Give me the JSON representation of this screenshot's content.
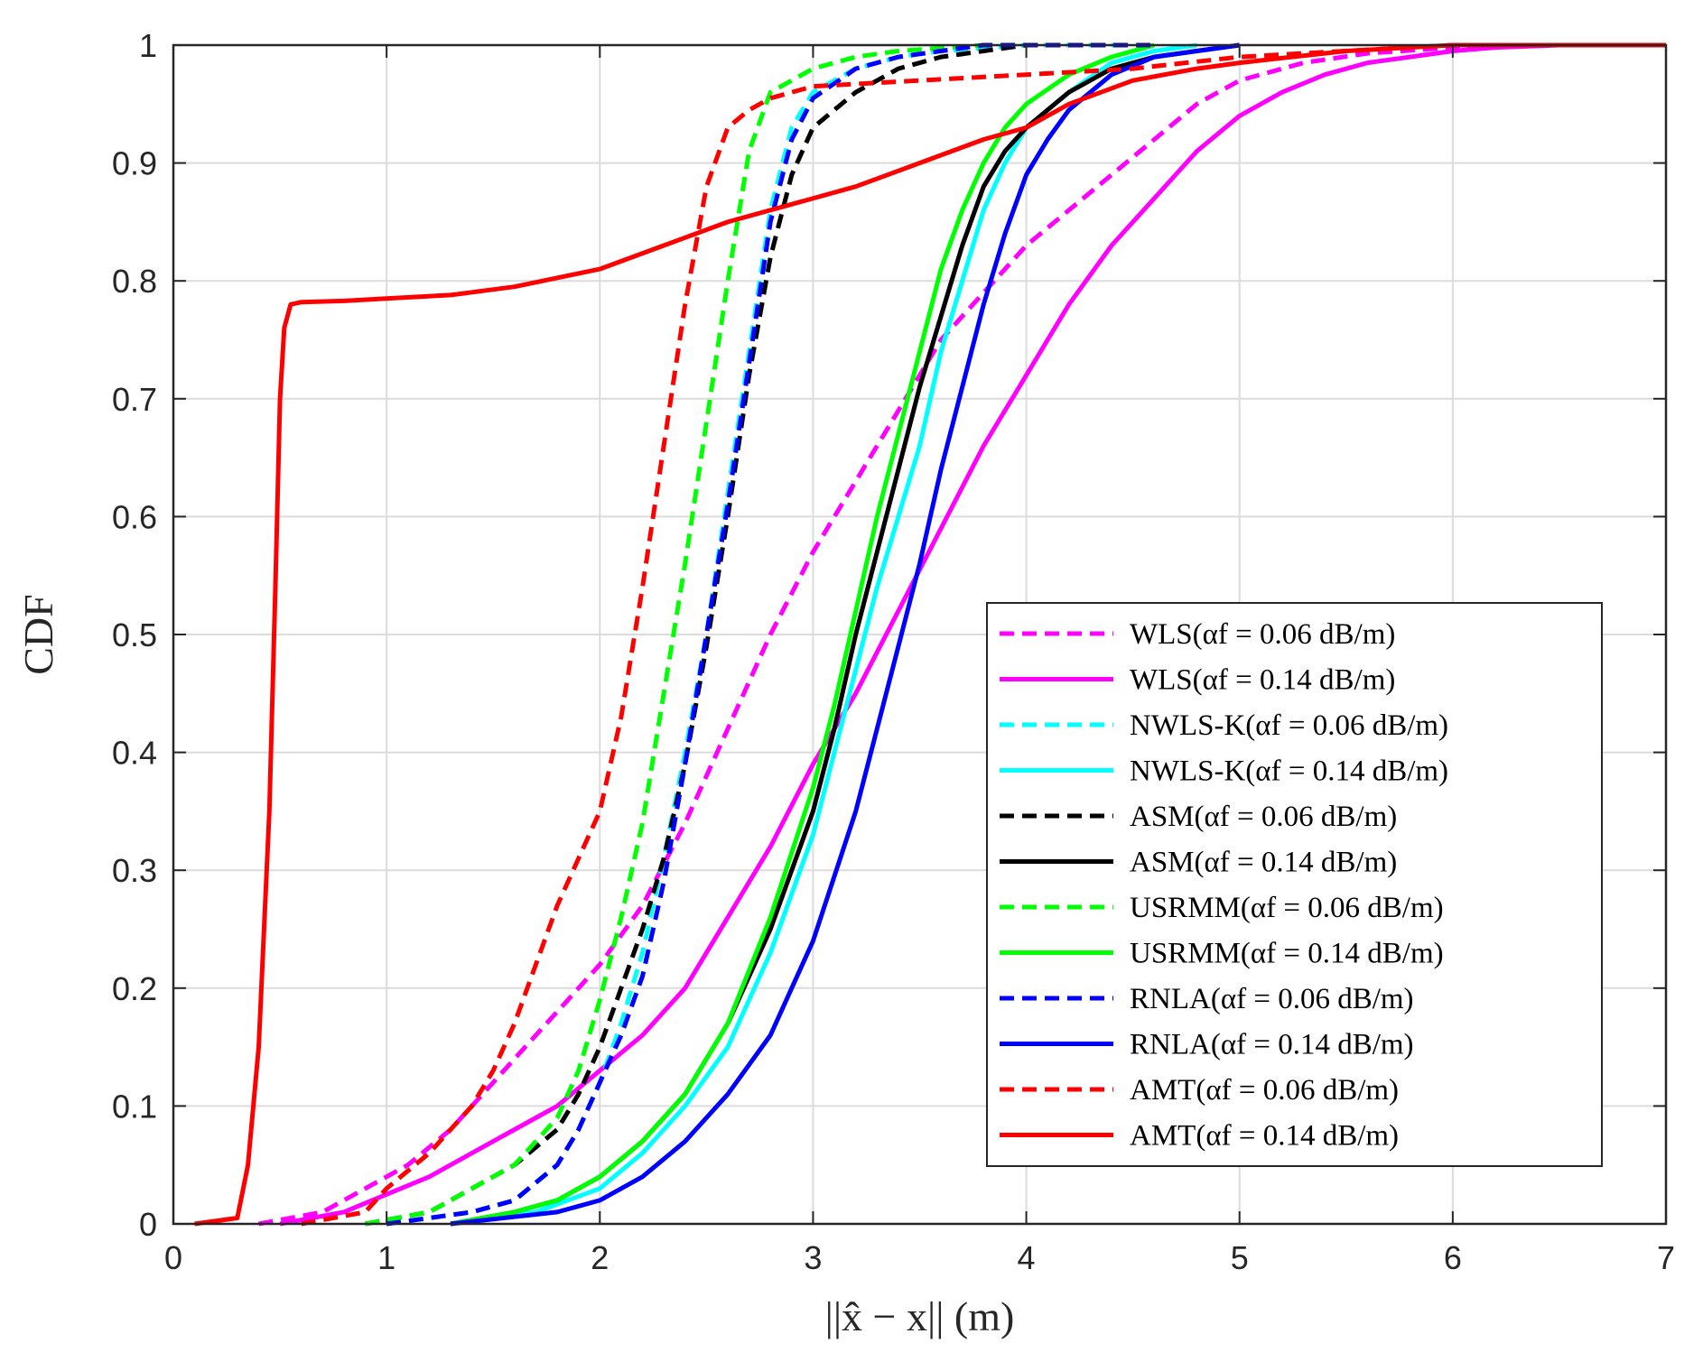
{
  "chart_data": {
    "type": "line",
    "title": "",
    "xlabel": "||x̂ − x|| (m)",
    "ylabel": "CDF",
    "xlim": [
      0,
      7
    ],
    "ylim": [
      0,
      1
    ],
    "grid": true,
    "legend_position": "bottom-right",
    "xticks": [
      {
        "value": 0,
        "label": "0"
      },
      {
        "value": 1,
        "label": "1"
      },
      {
        "value": 2,
        "label": "2"
      },
      {
        "value": 3,
        "label": "3"
      },
      {
        "value": 4,
        "label": "4"
      },
      {
        "value": 5,
        "label": "5"
      },
      {
        "value": 6,
        "label": "6"
      },
      {
        "value": 7,
        "label": "7"
      }
    ],
    "yticks": [
      {
        "value": 0,
        "label": "0"
      },
      {
        "value": 0.1,
        "label": "0.1"
      },
      {
        "value": 0.2,
        "label": "0.2"
      },
      {
        "value": 0.3,
        "label": "0.3"
      },
      {
        "value": 0.4,
        "label": "0.4"
      },
      {
        "value": 0.5,
        "label": "0.5"
      },
      {
        "value": 0.6,
        "label": "0.6"
      },
      {
        "value": 0.7,
        "label": "0.7"
      },
      {
        "value": 0.8,
        "label": "0.8"
      },
      {
        "value": 0.9,
        "label": "0.9"
      },
      {
        "value": 1,
        "label": "1"
      }
    ],
    "series": [
      {
        "name": "WLS(α_f = 0.06 dB/m)",
        "legend": "WLS(αf = 0.06 dB/m)",
        "color": "#ff00ff",
        "dashed": true,
        "x": [
          0.4,
          0.7,
          0.9,
          1.1,
          1.3,
          1.5,
          1.7,
          1.85,
          2.0,
          2.2,
          2.4,
          2.6,
          2.8,
          3.0,
          3.2,
          3.4,
          3.6,
          3.8,
          4.0,
          4.2,
          4.4,
          4.6,
          4.8,
          5.0,
          5.3,
          5.6,
          6.0,
          6.5,
          6.9
        ],
        "y": [
          0,
          0.01,
          0.03,
          0.05,
          0.08,
          0.12,
          0.16,
          0.19,
          0.22,
          0.27,
          0.34,
          0.42,
          0.5,
          0.57,
          0.63,
          0.69,
          0.75,
          0.79,
          0.83,
          0.86,
          0.89,
          0.92,
          0.95,
          0.97,
          0.985,
          0.993,
          0.998,
          1,
          1
        ]
      },
      {
        "name": "WLS(α_f = 0.14 dB/m)",
        "legend": "WLS(αf = 0.14 dB/m)",
        "color": "#ff00ff",
        "dashed": false,
        "x": [
          0.5,
          0.8,
          1.0,
          1.2,
          1.4,
          1.6,
          1.8,
          2.0,
          2.2,
          2.4,
          2.6,
          2.8,
          3.0,
          3.2,
          3.4,
          3.6,
          3.8,
          4.0,
          4.2,
          4.4,
          4.6,
          4.8,
          5.0,
          5.2,
          5.4,
          5.6,
          5.8,
          6.0,
          6.2,
          6.5,
          6.8
        ],
        "y": [
          0,
          0.01,
          0.025,
          0.04,
          0.06,
          0.08,
          0.1,
          0.13,
          0.16,
          0.2,
          0.26,
          0.32,
          0.39,
          0.45,
          0.52,
          0.59,
          0.66,
          0.72,
          0.78,
          0.83,
          0.87,
          0.91,
          0.94,
          0.96,
          0.975,
          0.985,
          0.99,
          0.995,
          0.998,
          1,
          1
        ]
      },
      {
        "name": "NWLS-K(α_f = 0.06 dB/m)",
        "legend": "NWLS-K(αf = 0.06 dB/m)",
        "color": "#00ffff",
        "dashed": true,
        "x": [
          1.0,
          1.4,
          1.6,
          1.8,
          1.9,
          2.0,
          2.1,
          2.2,
          2.3,
          2.4,
          2.5,
          2.6,
          2.7,
          2.8,
          2.9,
          3.0,
          3.2,
          3.4,
          3.6,
          4.0,
          4.5
        ],
        "y": [
          0,
          0.01,
          0.02,
          0.05,
          0.08,
          0.12,
          0.17,
          0.23,
          0.31,
          0.4,
          0.5,
          0.62,
          0.74,
          0.86,
          0.93,
          0.96,
          0.98,
          0.99,
          0.995,
          1,
          1
        ]
      },
      {
        "name": "NWLS-K(α_f = 0.14 dB/m)",
        "legend": "NWLS-K(αf = 0.14 dB/m)",
        "color": "#00ffff",
        "dashed": false,
        "x": [
          1.3,
          1.7,
          2.0,
          2.2,
          2.4,
          2.6,
          2.8,
          3.0,
          3.1,
          3.2,
          3.3,
          3.4,
          3.5,
          3.6,
          3.7,
          3.8,
          3.9,
          4.0,
          4.2,
          4.4,
          4.6,
          4.8
        ],
        "y": [
          0,
          0.01,
          0.03,
          0.06,
          0.1,
          0.15,
          0.23,
          0.33,
          0.4,
          0.47,
          0.54,
          0.6,
          0.66,
          0.74,
          0.8,
          0.86,
          0.9,
          0.93,
          0.96,
          0.985,
          0.995,
          1
        ]
      },
      {
        "name": "ASM(α_f = 0.06 dB/m)",
        "legend": "ASM(αf = 0.06 dB/m)",
        "color": "#000000",
        "dashed": true,
        "x": [
          0.9,
          1.2,
          1.4,
          1.6,
          1.8,
          1.9,
          2.0,
          2.1,
          2.2,
          2.3,
          2.4,
          2.5,
          2.6,
          2.7,
          2.8,
          2.9,
          3.0,
          3.2,
          3.4,
          3.6,
          3.8,
          4.0,
          4.4
        ],
        "y": [
          0,
          0.01,
          0.03,
          0.05,
          0.08,
          0.11,
          0.15,
          0.2,
          0.25,
          0.31,
          0.39,
          0.49,
          0.6,
          0.72,
          0.82,
          0.89,
          0.93,
          0.96,
          0.98,
          0.99,
          0.995,
          1,
          1
        ]
      },
      {
        "name": "ASM(α_f = 0.14 dB/m)",
        "legend": "ASM(αf = 0.14 dB/m)",
        "color": "#000000",
        "dashed": false,
        "x": [
          1.3,
          1.6,
          1.8,
          2.0,
          2.2,
          2.4,
          2.6,
          2.8,
          3.0,
          3.1,
          3.2,
          3.3,
          3.4,
          3.5,
          3.6,
          3.7,
          3.8,
          3.9,
          4.0,
          4.2,
          4.4,
          4.6,
          4.8,
          5.0
        ],
        "y": [
          0,
          0.01,
          0.02,
          0.04,
          0.07,
          0.11,
          0.17,
          0.25,
          0.35,
          0.42,
          0.5,
          0.57,
          0.64,
          0.71,
          0.77,
          0.83,
          0.88,
          0.91,
          0.93,
          0.96,
          0.98,
          0.99,
          0.995,
          1
        ]
      },
      {
        "name": "USRMM(α_f = 0.06 dB/m)",
        "legend": "USRMM(αf = 0.06 dB/m)",
        "color": "#00ff00",
        "dashed": true,
        "x": [
          0.9,
          1.2,
          1.4,
          1.6,
          1.8,
          1.9,
          2.0,
          2.1,
          2.2,
          2.3,
          2.4,
          2.5,
          2.6,
          2.7,
          2.8,
          3.0,
          3.2,
          3.4,
          3.8
        ],
        "y": [
          0,
          0.01,
          0.03,
          0.05,
          0.09,
          0.13,
          0.19,
          0.26,
          0.34,
          0.45,
          0.56,
          0.68,
          0.8,
          0.91,
          0.96,
          0.98,
          0.99,
          0.995,
          1
        ]
      },
      {
        "name": "USRMM(α_f = 0.14 dB/m)",
        "legend": "USRMM(αf = 0.14 dB/m)",
        "color": "#00ff00",
        "dashed": false,
        "x": [
          1.3,
          1.6,
          1.8,
          2.0,
          2.2,
          2.4,
          2.6,
          2.8,
          3.0,
          3.1,
          3.2,
          3.3,
          3.4,
          3.5,
          3.6,
          3.7,
          3.8,
          3.9,
          4.0,
          4.2,
          4.4,
          4.6
        ],
        "y": [
          0,
          0.01,
          0.02,
          0.04,
          0.07,
          0.11,
          0.17,
          0.26,
          0.37,
          0.44,
          0.52,
          0.6,
          0.67,
          0.74,
          0.81,
          0.86,
          0.9,
          0.93,
          0.95,
          0.975,
          0.99,
          1
        ]
      },
      {
        "name": "RNLA(α_f = 0.06 dB/m)",
        "legend": "RNLA(αf = 0.06 dB/m)",
        "color": "#0000ff",
        "dashed": true,
        "x": [
          1.0,
          1.4,
          1.6,
          1.8,
          1.9,
          2.0,
          2.1,
          2.2,
          2.3,
          2.4,
          2.5,
          2.6,
          2.7,
          2.8,
          2.9,
          3.0,
          3.2,
          3.4,
          3.6,
          3.8,
          4.2,
          4.6
        ],
        "y": [
          0,
          0.01,
          0.02,
          0.05,
          0.08,
          0.12,
          0.16,
          0.21,
          0.29,
          0.39,
          0.5,
          0.61,
          0.73,
          0.85,
          0.92,
          0.955,
          0.98,
          0.99,
          0.995,
          1,
          1,
          1
        ]
      },
      {
        "name": "RNLA(α_f = 0.14 dB/m)",
        "legend": "RNLA(αf = 0.14 dB/m)",
        "color": "#0000ff",
        "dashed": false,
        "x": [
          1.3,
          1.8,
          2.0,
          2.2,
          2.4,
          2.6,
          2.8,
          3.0,
          3.2,
          3.3,
          3.4,
          3.5,
          3.6,
          3.7,
          3.8,
          3.9,
          4.0,
          4.1,
          4.2,
          4.4,
          4.6,
          4.8,
          5.0
        ],
        "y": [
          0,
          0.01,
          0.02,
          0.04,
          0.07,
          0.11,
          0.16,
          0.24,
          0.35,
          0.42,
          0.49,
          0.56,
          0.64,
          0.71,
          0.78,
          0.84,
          0.89,
          0.92,
          0.945,
          0.975,
          0.99,
          0.995,
          1
        ]
      },
      {
        "name": "AMT(α_f = 0.06 dB/m)",
        "legend": "AMT(αf = 0.06 dB/m)",
        "color": "#ff0000",
        "dashed": true,
        "x": [
          0.6,
          0.9,
          1.0,
          1.2,
          1.4,
          1.5,
          1.6,
          1.7,
          1.8,
          1.9,
          2.0,
          2.1,
          2.2,
          2.3,
          2.4,
          2.5,
          2.6,
          2.7,
          2.8,
          3.0,
          3.5,
          4.0,
          4.5,
          5.0,
          5.5,
          6.0
        ],
        "y": [
          0,
          0.01,
          0.03,
          0.06,
          0.1,
          0.13,
          0.17,
          0.22,
          0.27,
          0.31,
          0.35,
          0.43,
          0.54,
          0.66,
          0.78,
          0.88,
          0.93,
          0.945,
          0.955,
          0.965,
          0.97,
          0.975,
          0.98,
          0.99,
          0.995,
          1
        ]
      },
      {
        "name": "AMT(α_f = 0.14 dB/m)",
        "legend": "AMT(αf = 0.14 dB/m)",
        "color": "#ff0000",
        "dashed": false,
        "x": [
          0.1,
          0.3,
          0.35,
          0.4,
          0.45,
          0.48,
          0.5,
          0.52,
          0.55,
          0.6,
          0.8,
          1.0,
          1.3,
          1.6,
          2.0,
          2.3,
          2.6,
          2.9,
          3.2,
          3.5,
          3.8,
          4.0,
          4.2,
          4.5,
          4.8,
          5.0,
          5.5,
          6.0,
          7.0
        ],
        "y": [
          0,
          0.005,
          0.05,
          0.15,
          0.35,
          0.55,
          0.7,
          0.76,
          0.78,
          0.782,
          0.783,
          0.785,
          0.788,
          0.795,
          0.81,
          0.83,
          0.85,
          0.865,
          0.88,
          0.9,
          0.92,
          0.93,
          0.95,
          0.97,
          0.98,
          0.985,
          0.995,
          1,
          1
        ]
      }
    ]
  }
}
